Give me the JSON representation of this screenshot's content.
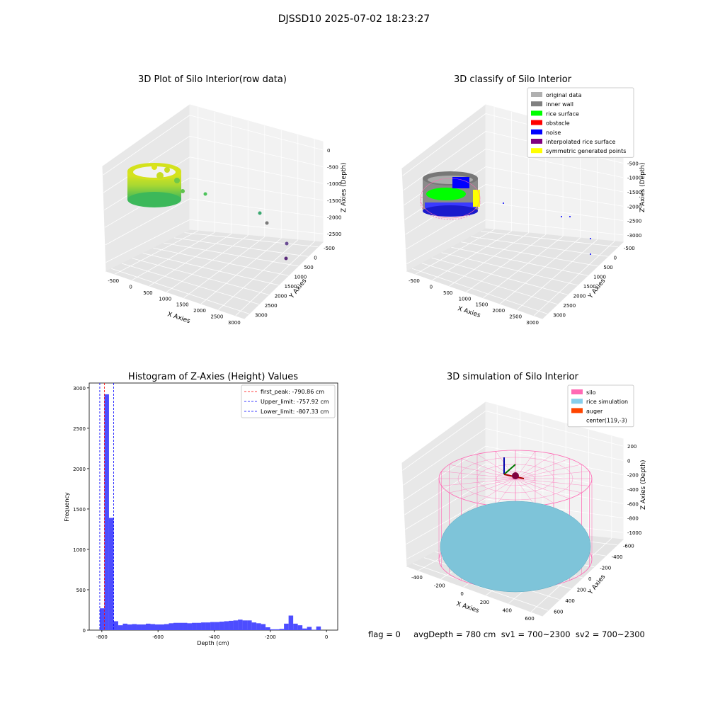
{
  "suptitle": "DJSSD10 2025-07-02 18:23:27",
  "colors": {
    "pane_fill": "#f2f2f2",
    "pane_fill_dark": "#e6e6e6",
    "grid": "#ffffff",
    "hist_bar": "#4d4dff",
    "silo": "#ff69b4",
    "rice": "#7ec4d9",
    "auger": "#ff4500",
    "red": "#ff0000",
    "green": "#00ff00",
    "blue": "#0000ff",
    "gray_light": "#b0b0b0",
    "gray": "#808080",
    "purple": "#800080",
    "yellow": "#ffff00"
  },
  "panel_tl": {
    "title": "3D Plot of Silo Interior(row data)",
    "xlabel": "X Axies",
    "ylabel": "Y Axies",
    "zlabel": "Z Axies (Depth)",
    "xticks": [
      "-500",
      "0",
      "500",
      "1000",
      "1500",
      "2000",
      "2500",
      "3000"
    ],
    "yticks": [
      "-500",
      "0",
      "500",
      "1000",
      "1500",
      "2000",
      "2500",
      "3000"
    ],
    "zticks": [
      "0",
      "-500",
      "-1000",
      "-1500",
      "-2000",
      "-2500"
    ]
  },
  "panel_tr": {
    "title": "3D classify of Silo Interior",
    "xlabel": "X Axies",
    "ylabel": "Y Axies",
    "zlabel": "Z Axies (Depth)",
    "xticks": [
      "-500",
      "0",
      "500",
      "1000",
      "1500",
      "2000",
      "2500",
      "3000"
    ],
    "yticks": [
      "-500",
      "0",
      "500",
      "1000",
      "1500",
      "2000",
      "2500",
      "3000"
    ],
    "zticks": [
      "0",
      "-500",
      "-1000",
      "-1500",
      "-2000",
      "-2500",
      "-3000"
    ],
    "legend": [
      {
        "label": "original data",
        "color": "#b0b0b0"
      },
      {
        "label": "inner wall",
        "color": "#808080"
      },
      {
        "label": "rice surface",
        "color": "#00ff00"
      },
      {
        "label": "obstacle",
        "color": "#ff0000"
      },
      {
        "label": "noise",
        "color": "#0000ff"
      },
      {
        "label": "interpolated rice surface",
        "color": "#800080"
      },
      {
        "label": "symmetric generated points",
        "color": "#ffff00"
      }
    ]
  },
  "panel_br": {
    "title": "3D simulation of Silo Interior",
    "xlabel": "X Axies",
    "ylabel": "Y Axies",
    "zlabel": "Z Axies (Depth)",
    "xticks": [
      "-400",
      "-200",
      "0",
      "200",
      "400",
      "600"
    ],
    "yticks": [
      "-600",
      "-400",
      "-200",
      "0",
      "200",
      "400",
      "600"
    ],
    "zticks": [
      "200",
      "0",
      "-200",
      "-400",
      "-600",
      "-800",
      "-1000"
    ],
    "legend": [
      {
        "label": "silo",
        "color": "#ff69b4"
      },
      {
        "label": "rice simulation",
        "color": "#87ceeb"
      },
      {
        "label": "auger",
        "color": "#ff4500"
      },
      {
        "label": "center(119,-3)",
        "color": ""
      }
    ]
  },
  "status_line": "flag = 0     avgDepth = 780 cm  sv1 = 700~2300  sv2 = 700~2300",
  "chart_data": {
    "type": "bar",
    "title": "Histogram of Z-Axies (Height) Values",
    "xlabel": "Depth (cm)",
    "ylabel": "Frequency",
    "xlim": [
      -845,
      40
    ],
    "ylim": [
      0,
      3060
    ],
    "xticks": [
      -800,
      -600,
      -400,
      -200,
      0
    ],
    "yticks": [
      0,
      500,
      1000,
      1500,
      2000,
      2500,
      3000
    ],
    "bin_width": 16.4,
    "bin_start": -807.33,
    "values": [
      270,
      2920,
      1390,
      110,
      60,
      80,
      70,
      75,
      70,
      70,
      80,
      75,
      70,
      70,
      75,
      85,
      90,
      90,
      90,
      85,
      90,
      90,
      95,
      95,
      100,
      100,
      105,
      110,
      115,
      120,
      130,
      120,
      120,
      95,
      85,
      75,
      35,
      10,
      10,
      15,
      80,
      180,
      80,
      60,
      20,
      40,
      5,
      45
    ],
    "vlines": [
      {
        "label": "first_peak: -790.86 cm",
        "x": -790.86,
        "color": "#ff0000"
      },
      {
        "label": "Upper_limit: -757.92 cm",
        "x": -757.92,
        "color": "#0000ff"
      },
      {
        "label": "Lower_limit: -807.33 cm",
        "x": -807.33,
        "color": "#0000ff"
      }
    ]
  }
}
